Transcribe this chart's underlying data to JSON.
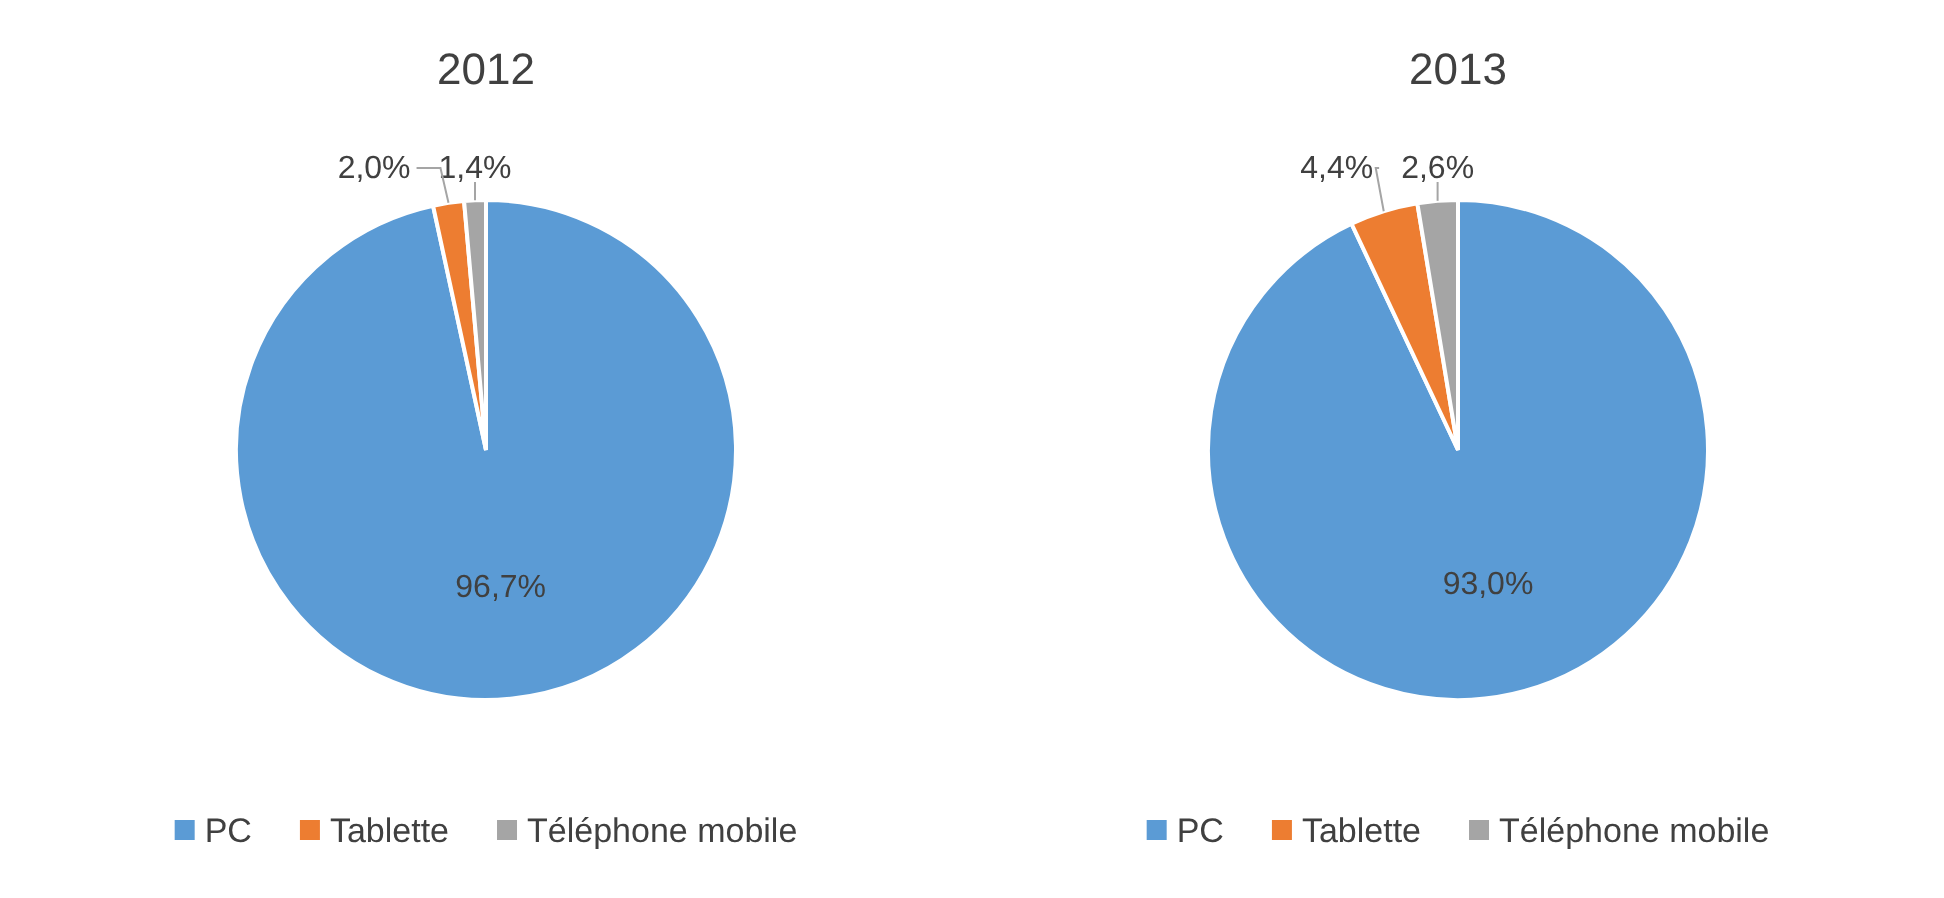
{
  "chart_data": [
    {
      "type": "pie",
      "title": "2012",
      "categories": [
        "PC",
        "Tablette",
        "Téléphone mobile"
      ],
      "values": [
        96.7,
        2.0,
        1.4
      ],
      "colors": [
        "#5b9bd5",
        "#ed7d31",
        "#a5a5a5"
      ],
      "value_labels": [
        "96,7%",
        "2,0%",
        "1,4%"
      ],
      "legend": "bottom"
    },
    {
      "type": "pie",
      "title": "2013",
      "categories": [
        "PC",
        "Tablette",
        "Téléphone mobile"
      ],
      "values": [
        93.0,
        4.4,
        2.6
      ],
      "colors": [
        "#5b9bd5",
        "#ed7d31",
        "#a5a5a5"
      ],
      "value_labels": [
        "93,0%",
        "4,4%",
        "2,6%"
      ],
      "legend": "bottom"
    }
  ]
}
